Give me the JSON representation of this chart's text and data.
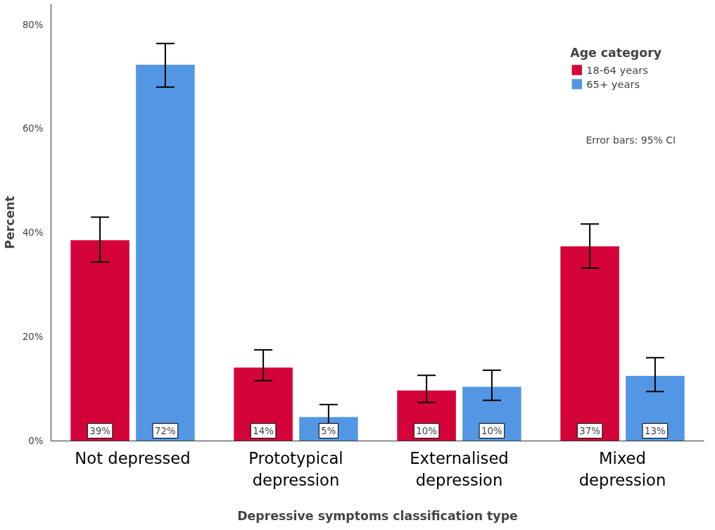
{
  "chart_data": {
    "type": "bar",
    "xlabel": "Depressive symptoms classification type",
    "ylabel": "Percent",
    "legend_title": "Age category",
    "categories": [
      "Not depressed",
      "Prototypical depression",
      "Externalised depression",
      "Mixed depression"
    ],
    "series": [
      {
        "name": "18-64 years",
        "color": "#d4033a",
        "values": [
          38.6,
          14.1,
          9.7,
          37.4
        ],
        "errors": [
          [
            34.4,
            43.0
          ],
          [
            11.6,
            17.5
          ],
          [
            7.4,
            12.6
          ],
          [
            33.2,
            41.7
          ]
        ],
        "value_labels": [
          "39%",
          "14%",
          "10%",
          "37%"
        ]
      },
      {
        "name": "65+ years",
        "color": "#5397e4",
        "values": [
          72.3,
          4.6,
          10.4,
          12.5
        ],
        "errors": [
          [
            68.0,
            76.4
          ],
          [
            2.8,
            7.0
          ],
          [
            7.8,
            13.6
          ],
          [
            9.5,
            16.0
          ]
        ],
        "value_labels": [
          "72%",
          "5%",
          "10%",
          "13%"
        ]
      }
    ],
    "ylim": [
      0,
      84
    ],
    "yticks": [
      {
        "value": 0,
        "label": "0%"
      },
      {
        "value": 20,
        "label": "20%"
      },
      {
        "value": 40,
        "label": "40%"
      },
      {
        "value": 60,
        "label": "60%"
      },
      {
        "value": 80,
        "label": "80%"
      }
    ],
    "grid": false,
    "legend": "top right",
    "annotations": [
      "Error bars: 95% CI"
    ]
  }
}
